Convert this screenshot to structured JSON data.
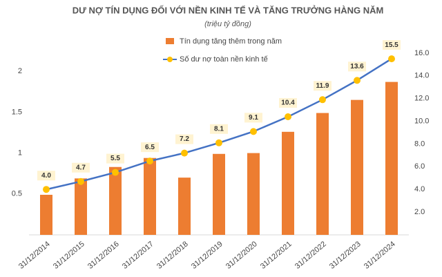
{
  "chart_data": {
    "type": "bar-line",
    "title": "DƯ NỢ TÍN DỤNG ĐỐI VỚI NỀN KINH TẾ VÀ TĂNG TRƯỞNG HÀNG NĂM",
    "subtitle": "(triệu tỷ đồng)",
    "categories": [
      "31/12/2014",
      "31/12/2015",
      "31/12/2016",
      "31/12/2017",
      "31/12/2018",
      "31/12/2019",
      "31/12/2020",
      "31/12/2021",
      "31/12/2022",
      "31/12/2023",
      "31/12/2024"
    ],
    "series": [
      {
        "name": "Tín dụng tăng thêm trong năm",
        "color": "#ed7d31",
        "kind": "bar",
        "values": [
          0.49,
          0.69,
          0.83,
          0.94,
          0.7,
          0.99,
          1.0,
          1.26,
          1.49,
          1.65,
          1.87
        ]
      },
      {
        "name": "Số dư nợ toàn nền kinh tế",
        "color": "#4472c4",
        "marker_color": "#ffc000",
        "kind": "line",
        "axis": "y2",
        "values": [
          4.0,
          4.7,
          5.5,
          6.5,
          7.2,
          8.1,
          9.1,
          10.4,
          11.9,
          13.6,
          15.5
        ],
        "value_labels": [
          "4.0",
          "4.7",
          "5.5",
          "6.5",
          "7.2",
          "8.1",
          "9.1",
          "10.4",
          "11.9",
          "13.6",
          "15.5"
        ]
      }
    ],
    "ylim": [
      0,
      2.5
    ],
    "yticks": [
      0.5,
      1,
      1.5,
      2
    ],
    "y2lim": [
      0,
      18
    ],
    "y2ticks": [
      {
        "value": 2,
        "label": "2.0"
      },
      {
        "value": 4,
        "label": "4.0"
      },
      {
        "value": 6,
        "label": "6.0"
      },
      {
        "value": 8,
        "label": "8.0"
      },
      {
        "value": 10,
        "label": "10.0"
      },
      {
        "value": 12,
        "label": "12.0"
      },
      {
        "value": 14,
        "label": "14.0"
      },
      {
        "value": 16,
        "label": "16.0"
      }
    ],
    "grid": false
  }
}
